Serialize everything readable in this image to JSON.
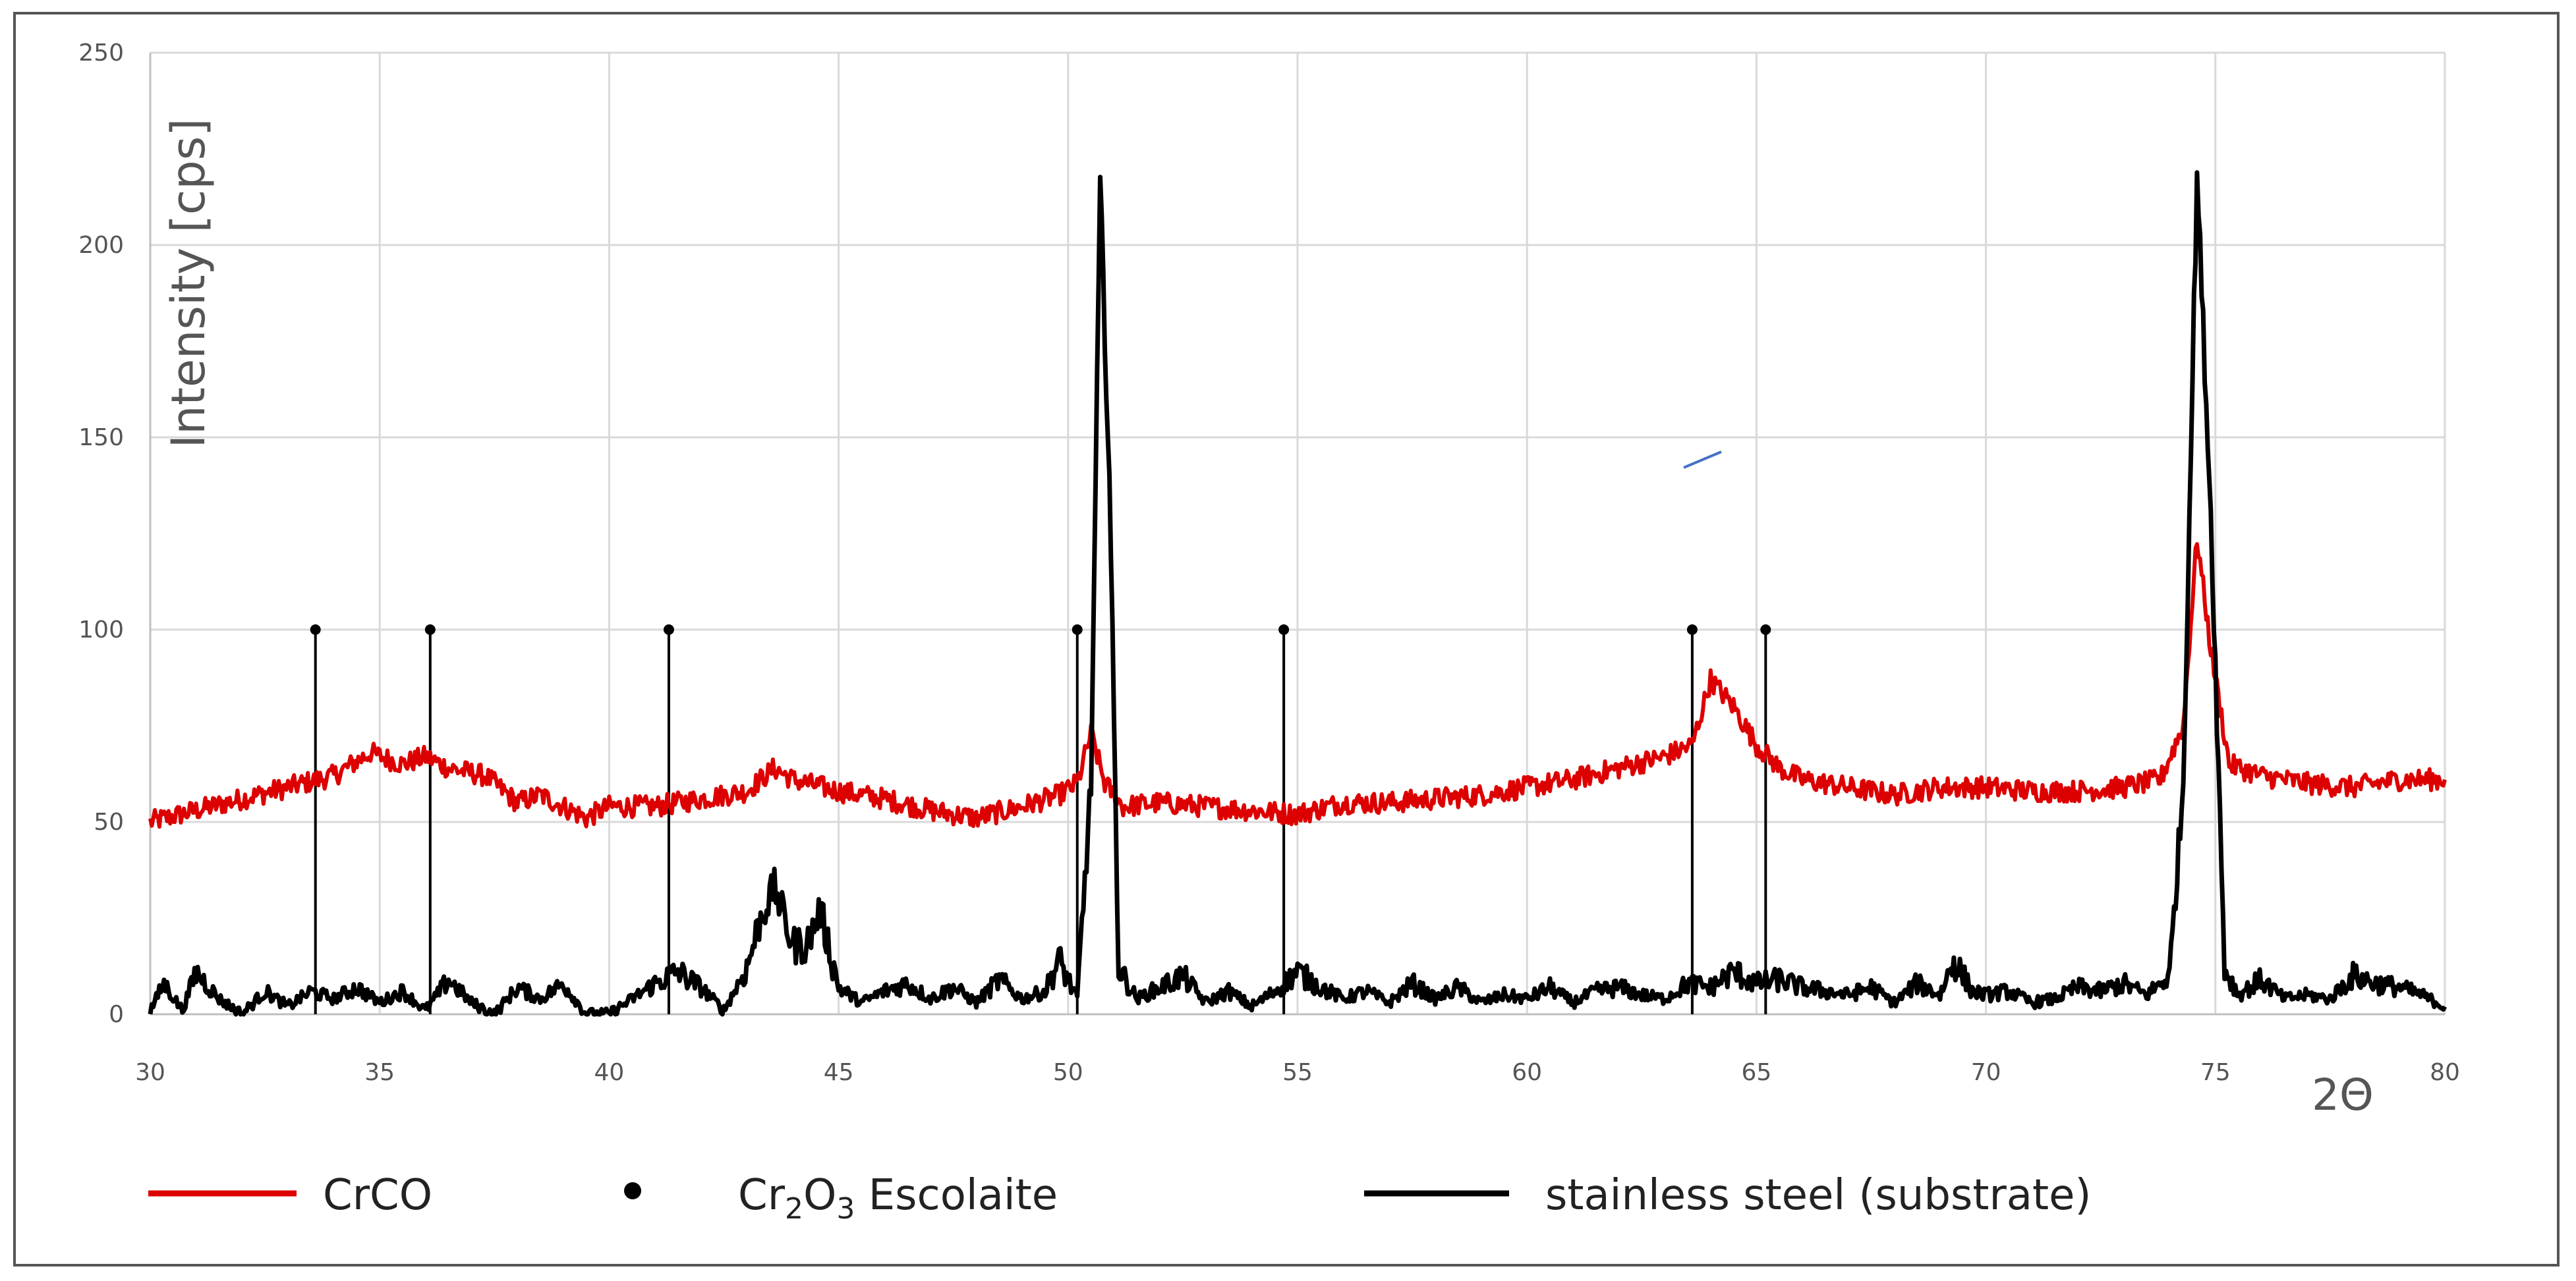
{
  "chart_data": {
    "type": "line",
    "ylabel": "Intensity [cps]",
    "xlabel": "2Θ",
    "xlim": [
      30,
      80
    ],
    "ylim": [
      0,
      250
    ],
    "xticks": [
      30,
      35,
      40,
      45,
      50,
      55,
      60,
      65,
      70,
      75,
      80
    ],
    "yticks": [
      0,
      50,
      100,
      150,
      200,
      250
    ],
    "grid": true,
    "legend_position": "bottom",
    "series": [
      {
        "name": "CrCO",
        "color": "#dd0000",
        "points": [
          [
            30,
            50
          ],
          [
            31,
            53
          ],
          [
            32,
            56
          ],
          [
            33,
            59
          ],
          [
            34,
            62
          ],
          [
            34.8,
            68
          ],
          [
            35.5,
            65
          ],
          [
            36,
            67
          ],
          [
            36.5,
            64
          ],
          [
            37.3,
            62
          ],
          [
            38,
            55
          ],
          [
            38.5,
            57
          ],
          [
            39,
            54
          ],
          [
            39.5,
            51
          ],
          [
            40,
            54
          ],
          [
            41,
            54
          ],
          [
            42,
            56
          ],
          [
            43,
            58
          ],
          [
            43.6,
            64
          ],
          [
            44,
            61
          ],
          [
            45,
            58
          ],
          [
            46,
            56
          ],
          [
            47,
            53
          ],
          [
            48,
            51
          ],
          [
            49,
            54
          ],
          [
            49.8,
            57
          ],
          [
            50.2,
            60
          ],
          [
            50.5,
            73
          ],
          [
            50.8,
            60
          ],
          [
            51.2,
            54
          ],
          [
            52,
            55
          ],
          [
            53,
            54
          ],
          [
            54,
            53
          ],
          [
            55,
            52
          ],
          [
            56,
            55
          ],
          [
            57,
            55
          ],
          [
            58,
            56
          ],
          [
            59,
            57
          ],
          [
            60,
            59
          ],
          [
            61,
            61
          ],
          [
            62,
            64
          ],
          [
            63,
            67
          ],
          [
            63.6,
            70
          ],
          [
            64,
            87
          ],
          [
            64.5,
            80
          ],
          [
            65,
            70
          ],
          [
            65.5,
            64
          ],
          [
            66,
            61
          ],
          [
            67,
            59
          ],
          [
            68,
            57
          ],
          [
            69,
            59
          ],
          [
            70,
            59
          ],
          [
            71,
            58
          ],
          [
            72,
            58
          ],
          [
            73,
            59
          ],
          [
            73.8,
            61
          ],
          [
            74.3,
            75
          ],
          [
            74.6,
            124
          ],
          [
            74.9,
            95
          ],
          [
            75.3,
            65
          ],
          [
            76,
            62
          ],
          [
            77,
            60
          ],
          [
            78,
            59
          ],
          [
            79,
            61
          ],
          [
            80,
            61
          ]
        ]
      },
      {
        "name": "stainless steel (substrate)",
        "color": "#000000",
        "points": [
          [
            30,
            1
          ],
          [
            30.3,
            8
          ],
          [
            30.7,
            1
          ],
          [
            31,
            11
          ],
          [
            31.5,
            4
          ],
          [
            32,
            0
          ],
          [
            32.5,
            6
          ],
          [
            33,
            2
          ],
          [
            33.5,
            6
          ],
          [
            34,
            4
          ],
          [
            34.5,
            7
          ],
          [
            35,
            3
          ],
          [
            35.5,
            6
          ],
          [
            36,
            1
          ],
          [
            36.5,
            9
          ],
          [
            37,
            3
          ],
          [
            37.5,
            0
          ],
          [
            38,
            7
          ],
          [
            38.5,
            4
          ],
          [
            39,
            8
          ],
          [
            39.5,
            0
          ],
          [
            40,
            0
          ],
          [
            40.5,
            4
          ],
          [
            41,
            8
          ],
          [
            41.5,
            11
          ],
          [
            42,
            7
          ],
          [
            42.5,
            1
          ],
          [
            43,
            12
          ],
          [
            43.3,
            25
          ],
          [
            43.6,
            33
          ],
          [
            44,
            18
          ],
          [
            44.3,
            18
          ],
          [
            44.6,
            27
          ],
          [
            45,
            7
          ],
          [
            45.5,
            3
          ],
          [
            46,
            6
          ],
          [
            46.5,
            8
          ],
          [
            47,
            4
          ],
          [
            47.5,
            7
          ],
          [
            48,
            3
          ],
          [
            48.5,
            9
          ],
          [
            49,
            4
          ],
          [
            49.5,
            6
          ],
          [
            49.8,
            14
          ],
          [
            50.2,
            4
          ],
          [
            50.5,
            60
          ],
          [
            50.7,
            215
          ],
          [
            50.9,
            140
          ],
          [
            51.1,
            12
          ],
          [
            51.5,
            4
          ],
          [
            52,
            7
          ],
          [
            52.5,
            10
          ],
          [
            53,
            3
          ],
          [
            53.5,
            6
          ],
          [
            54,
            2
          ],
          [
            54.5,
            6
          ],
          [
            55,
            11
          ],
          [
            55.5,
            7
          ],
          [
            56,
            4
          ],
          [
            56.5,
            6
          ],
          [
            57,
            3
          ],
          [
            57.5,
            8
          ],
          [
            58,
            4
          ],
          [
            58.5,
            7
          ],
          [
            59,
            3
          ],
          [
            59.5,
            5
          ],
          [
            60,
            4
          ],
          [
            60.5,
            7
          ],
          [
            61,
            3
          ],
          [
            61.5,
            6
          ],
          [
            62,
            7
          ],
          [
            62.5,
            5
          ],
          [
            63,
            4
          ],
          [
            63.5,
            8
          ],
          [
            64,
            7
          ],
          [
            64.5,
            11
          ],
          [
            65,
            8
          ],
          [
            65.5,
            9
          ],
          [
            66,
            7
          ],
          [
            66.5,
            6
          ],
          [
            67,
            5
          ],
          [
            67.5,
            7
          ],
          [
            68,
            3
          ],
          [
            68.5,
            8
          ],
          [
            69,
            5
          ],
          [
            69.3,
            14
          ],
          [
            69.7,
            6
          ],
          [
            70,
            5
          ],
          [
            70.5,
            6
          ],
          [
            71,
            3
          ],
          [
            71.5,
            4
          ],
          [
            72,
            7
          ],
          [
            72.5,
            6
          ],
          [
            73,
            8
          ],
          [
            73.5,
            5
          ],
          [
            74,
            10
          ],
          [
            74.3,
            60
          ],
          [
            74.6,
            218
          ],
          [
            74.9,
            130
          ],
          [
            75.2,
            12
          ],
          [
            75.5,
            5
          ],
          [
            76,
            9
          ],
          [
            76.5,
            4
          ],
          [
            77,
            5
          ],
          [
            77.5,
            4
          ],
          [
            78,
            10
          ],
          [
            78.5,
            8
          ],
          [
            79,
            7
          ],
          [
            79.5,
            5
          ],
          [
            80,
            2
          ]
        ]
      }
    ],
    "markers": {
      "name_prefix": "Cr",
      "name_sub1": "2",
      "name_mid": "O",
      "name_sub2": "3",
      "name_suffix": " Escolaite",
      "height": 100,
      "positions": [
        33.6,
        36.1,
        41.3,
        50.2,
        54.7,
        63.6,
        65.2
      ]
    }
  }
}
